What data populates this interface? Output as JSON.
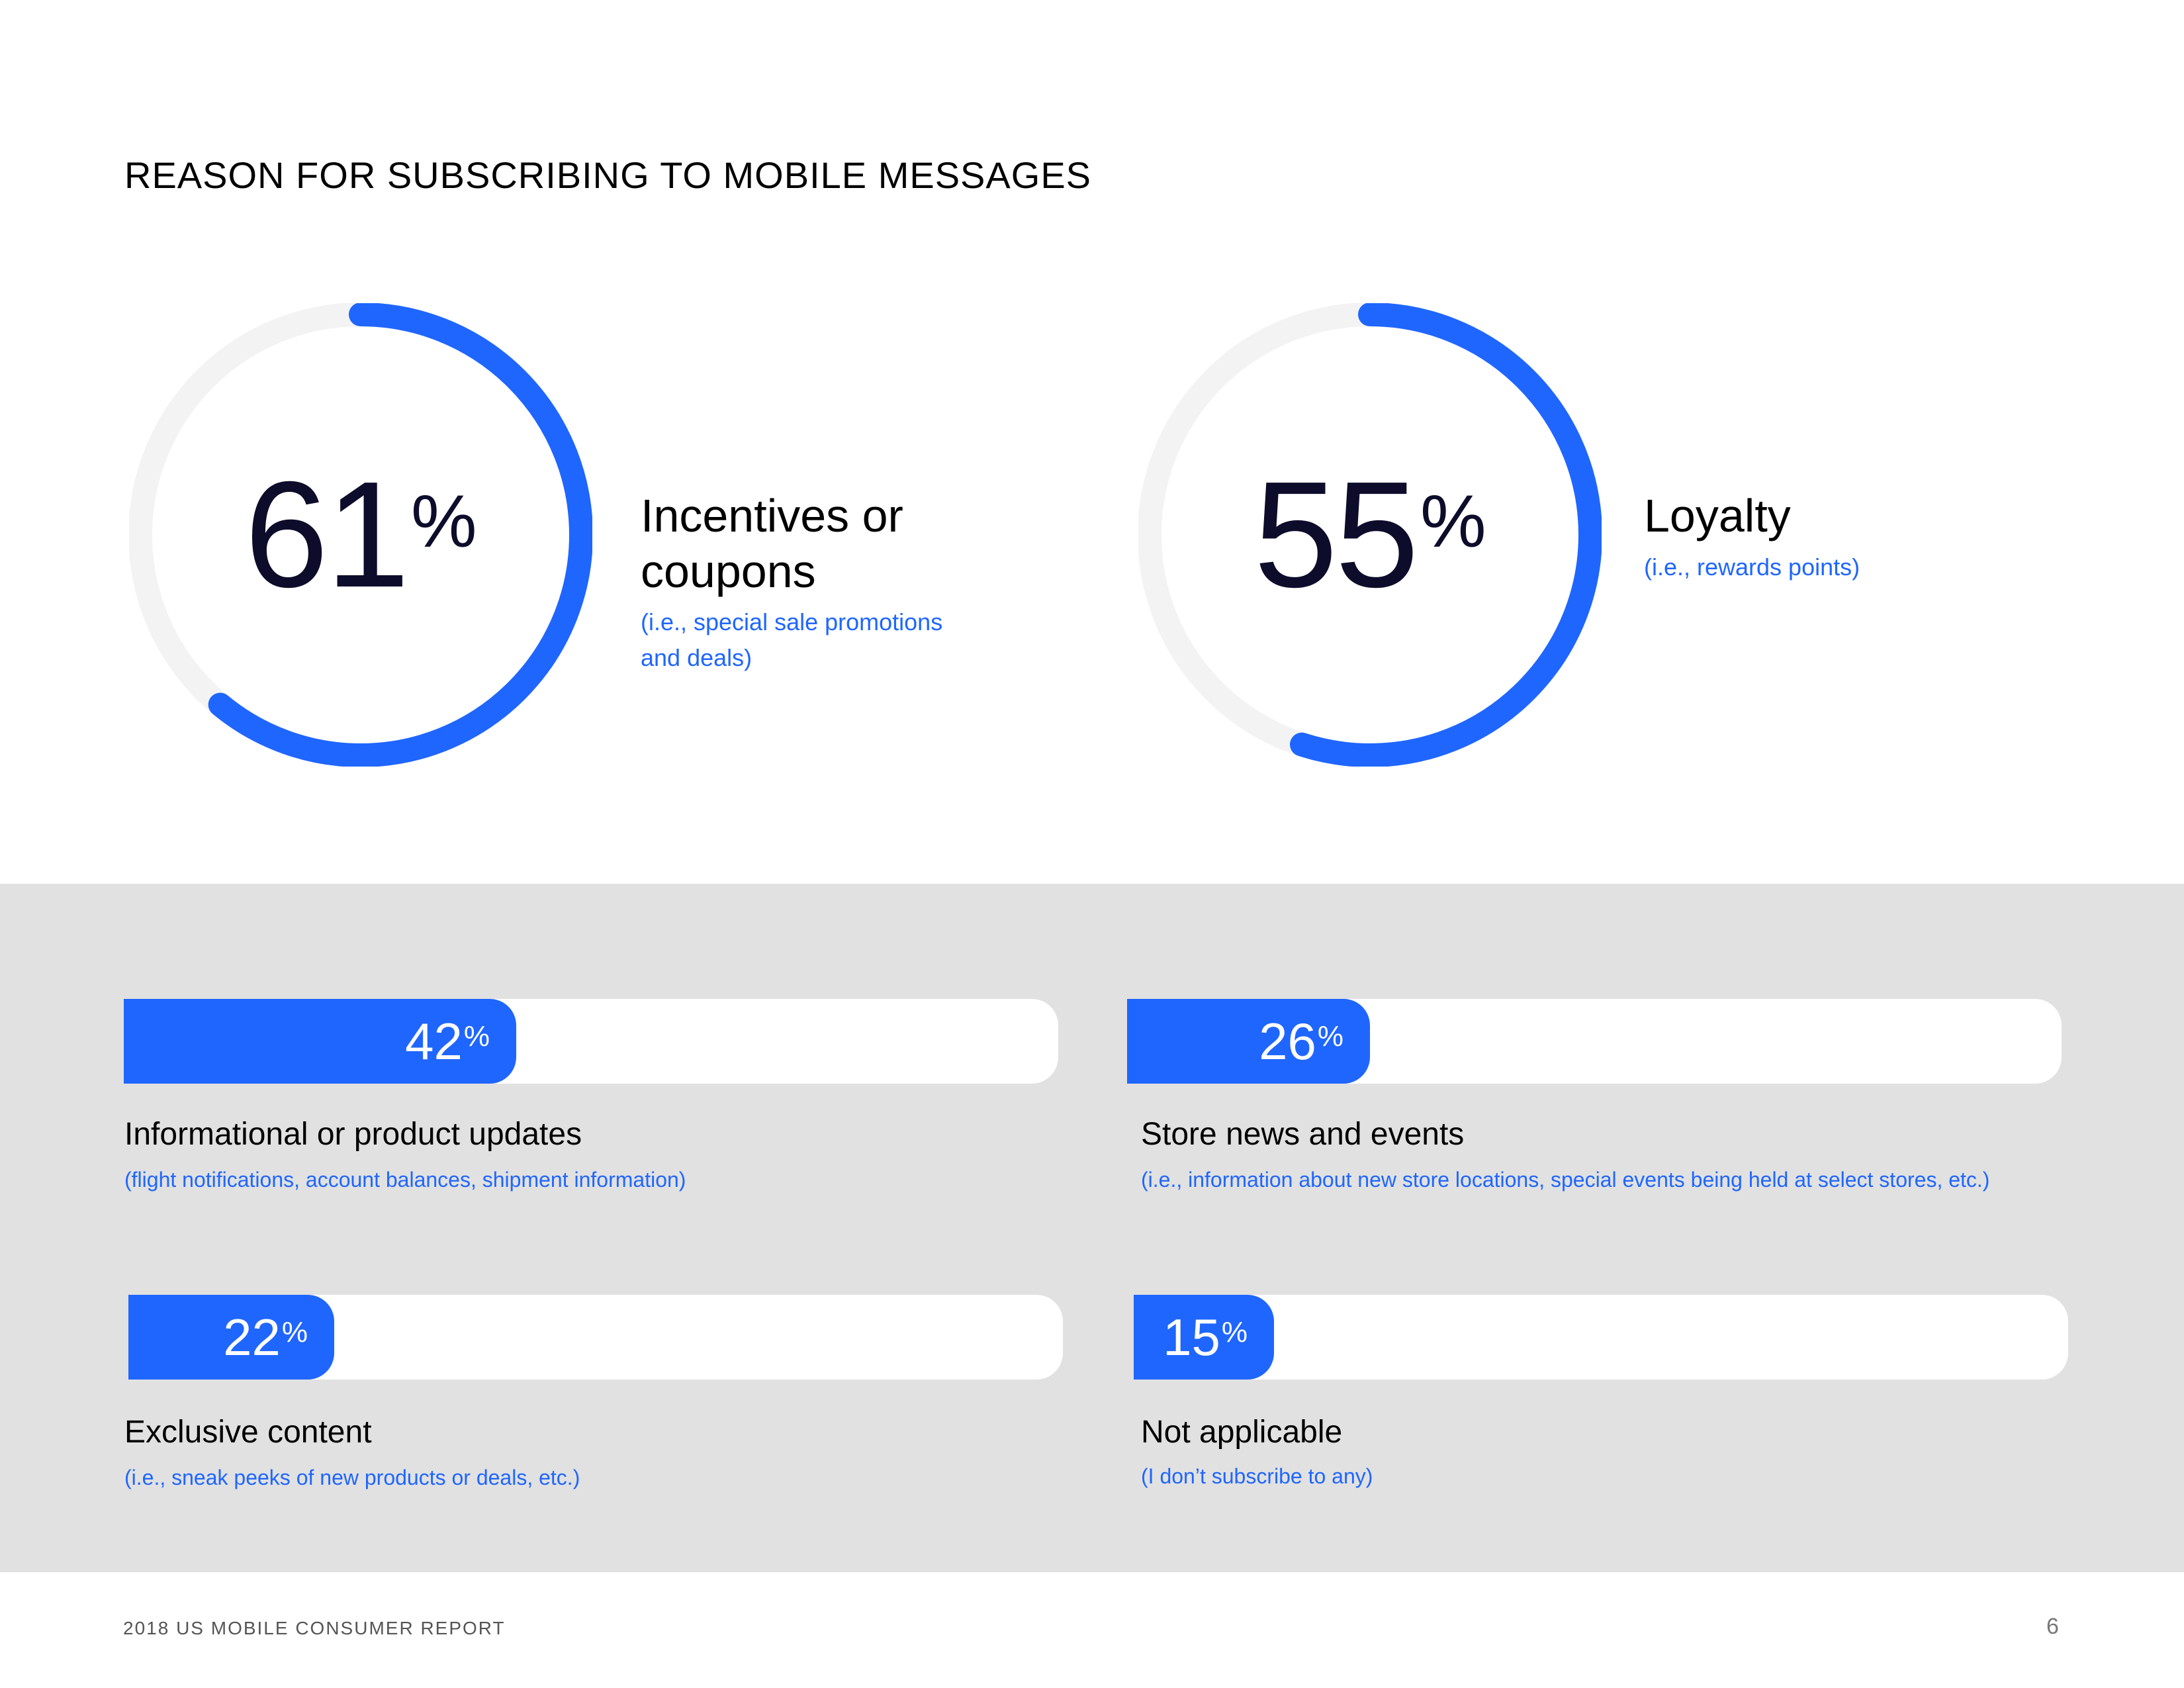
{
  "title": "REASON FOR SUBSCRIBING TO MOBILE MESSAGES",
  "colors": {
    "accent": "#1f66ff",
    "track": "#f3f3f3",
    "band": "#e1e1e1",
    "text_dark": "#0d0c2b"
  },
  "chart_data": [
    {
      "type": "donut",
      "value": 61,
      "value_text": "61",
      "unit": "%",
      "label": "Incentives or coupons",
      "label_lines": [
        "Incentives or",
        "coupons"
      ],
      "sublabel_lines": [
        "(i.e., special sale promotions",
        "and deals)"
      ]
    },
    {
      "type": "donut",
      "value": 55,
      "value_text": "55",
      "unit": "%",
      "label": "Loyalty",
      "label_lines": [
        "Loyalty"
      ],
      "sublabel_lines": [
        "(i.e., rewards points)"
      ]
    },
    {
      "type": "bar",
      "orientation": "horizontal",
      "range": [
        0,
        100
      ],
      "categories": [
        "Informational or product updates",
        "Store news and events",
        "Exclusive content",
        "Not applicable"
      ],
      "values": [
        42,
        26,
        22,
        15
      ],
      "unit": "%",
      "value_texts": [
        "42",
        "26",
        "22",
        "15"
      ],
      "sublabels": [
        "(flight notifications, account balances, shipment information)",
        "(i.e., information about new store locations, special events being held at select stores, etc.)",
        "(i.e., sneak peeks of new products or deals, etc.)",
        "(I don’t subscribe to any)"
      ]
    }
  ],
  "footer": {
    "report": "2018 US MOBILE CONSUMER REPORT",
    "page": "6"
  }
}
